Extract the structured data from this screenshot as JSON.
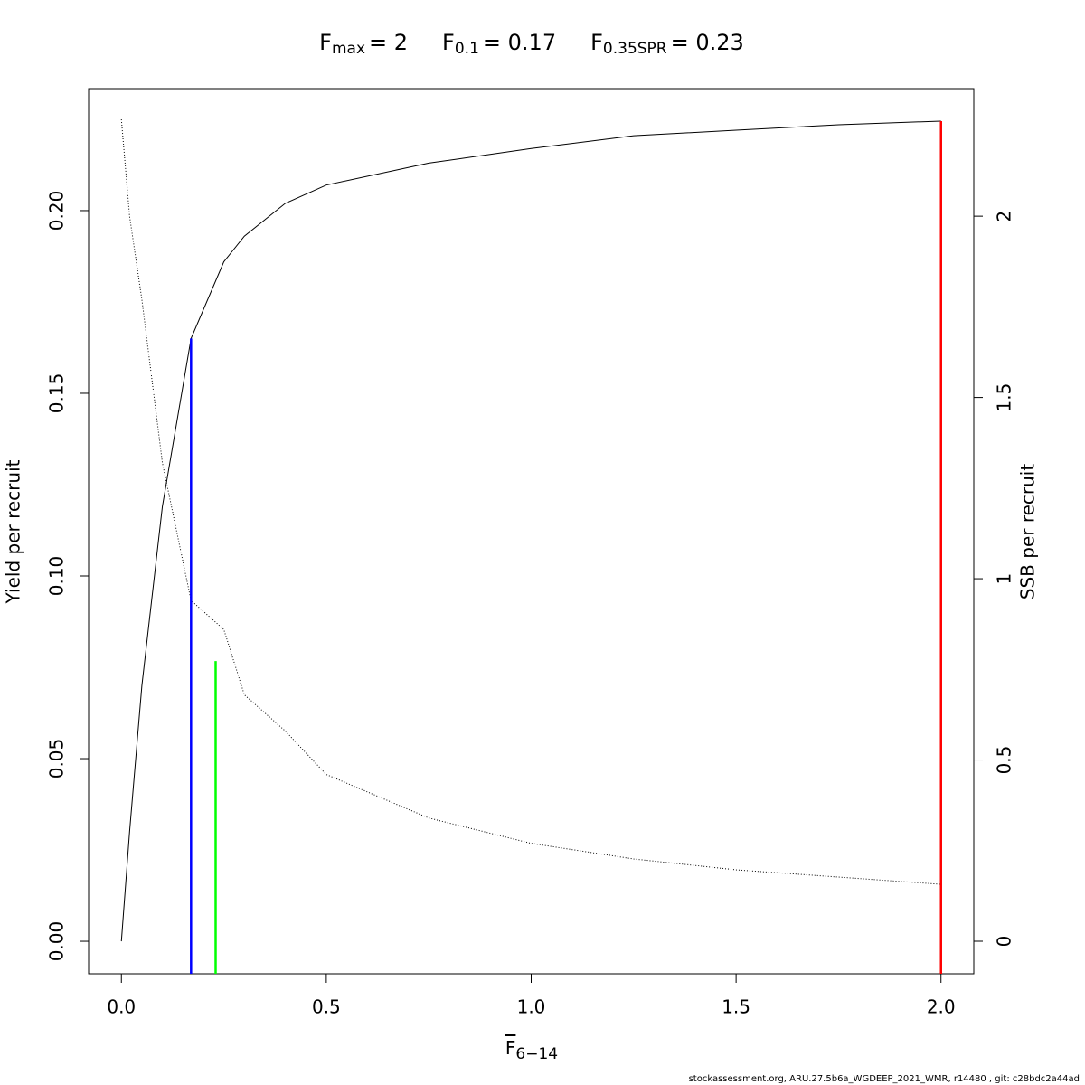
{
  "chart_data": {
    "type": "line",
    "title_parts": [
      {
        "symbol": "F",
        "subscript": "max",
        "text": "= 2"
      },
      {
        "symbol": "F",
        "subscript": "0.1",
        "text": "= 0.17"
      },
      {
        "symbol": "F",
        "subscript": "0.35SPR",
        "text": "= 0.23"
      }
    ],
    "x_label": {
      "symbol": "F",
      "subscript": "6−14"
    },
    "y_label": "Yield per recruit",
    "y2_label": "SSB per recruit",
    "footer": "stockassessment.org, ARU.27.5b6a_WGDEEP_2021_WMR, r14480 , git: c28bdc2a44ad",
    "xlim": [
      -0.08,
      2.08
    ],
    "ylim": [
      -0.0089,
      0.2334
    ],
    "y2lim": [
      -0.0898,
      2.352
    ],
    "xticks": [
      {
        "value": 0,
        "label": "0.0"
      },
      0.5,
      {
        "value": 1,
        "label": "1.0"
      },
      1.5,
      {
        "value": 2,
        "label": "2.0"
      }
    ],
    "yticks": [
      {
        "value": 0,
        "label": "0.00"
      },
      0.05,
      {
        "value": 0.1,
        "label": "0.10"
      },
      0.15,
      {
        "value": 0.2,
        "label": "0.20"
      }
    ],
    "y2ticks": [
      0,
      0.5,
      1,
      1.5,
      2
    ],
    "x": [
      0,
      0.02,
      0.05,
      0.1,
      0.17,
      0.25,
      0.3,
      0.4,
      0.5,
      0.75,
      1,
      1.25,
      1.5,
      1.75,
      2
    ],
    "series": [
      {
        "name": "Yield per recruit",
        "color": "#000000",
        "dash": "solid",
        "values": [
          0,
          0.03,
          0.07,
          0.119,
          0.165,
          0.186,
          0.193,
          0.202,
          0.207,
          0.213,
          0.217,
          0.2205,
          0.222,
          0.2235,
          0.2245
        ]
      },
      {
        "name": "SSB per recruit",
        "color": "#000000",
        "dash": "dotted",
        "axis": "y2",
        "values": [
          2.267,
          2.0,
          1.77,
          1.32,
          0.94,
          0.86,
          0.68,
          0.58,
          0.46,
          0.34,
          0.27,
          0.227,
          0.197,
          0.177,
          0.157
        ]
      }
    ],
    "reference_lines": [
      {
        "x": 0.17,
        "top": 0.165,
        "color": "#0000ff"
      },
      {
        "x": 0.23,
        "top": 0.0767,
        "color": "#00ff00"
      },
      {
        "x": 2,
        "top": 0.2245,
        "color": "#ff0000"
      }
    ]
  }
}
